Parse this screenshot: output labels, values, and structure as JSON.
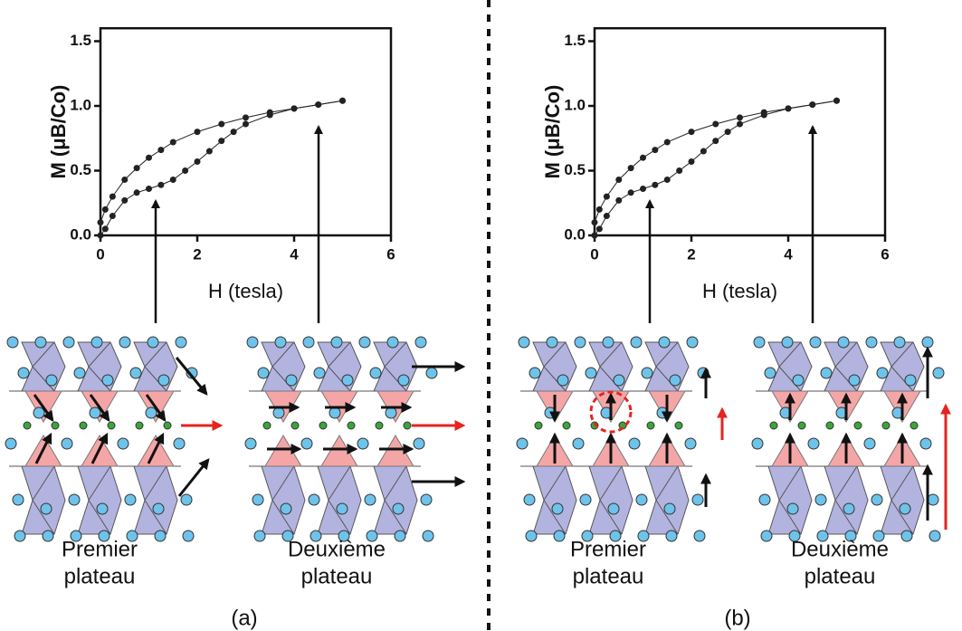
{
  "chart_data": [
    {
      "type": "line",
      "x_label": "H (tesla)",
      "y_label": "M (μB/Co)",
      "xlim": [
        0,
        6
      ],
      "xticks": [
        0,
        2,
        4,
        6
      ],
      "ylim": [
        0,
        1.6
      ],
      "yticks": [
        {
          "value": 0,
          "label": "0.0"
        },
        {
          "value": 0.5,
          "label": "0.5"
        },
        {
          "value": 1,
          "label": "1.0"
        },
        {
          "value": 1.5,
          "label": "1.5"
        }
      ],
      "series": [
        {
          "color": "#222222",
          "x": [
            0,
            0.1,
            0.25,
            0.5,
            0.75,
            1,
            1.25,
            1.5,
            2,
            2.5,
            3,
            3.5,
            4,
            4.5,
            5
          ],
          "values": [
            0.1,
            0.2,
            0.3,
            0.43,
            0.52,
            0.6,
            0.66,
            0.72,
            0.8,
            0.86,
            0.91,
            0.95,
            0.98,
            1.01,
            1.04
          ]
        },
        {
          "color": "#222222",
          "x": [
            0,
            0.1,
            0.25,
            0.5,
            0.75,
            1,
            1.25,
            1.5,
            1.75,
            2,
            2.25,
            2.5,
            2.75,
            3,
            3.5,
            4,
            4.5,
            5
          ],
          "values": [
            0,
            0.05,
            0.15,
            0.27,
            0.33,
            0.36,
            0.39,
            0.43,
            0.5,
            0.57,
            0.65,
            0.73,
            0.8,
            0.86,
            0.93,
            0.98,
            1.01,
            1.04
          ]
        }
      ]
    },
    {
      "type": "line",
      "x_label": "H (tesla)",
      "y_label": "M (μB/Co)",
      "xlim": [
        0,
        6
      ],
      "xticks": [
        0,
        2,
        4,
        6
      ],
      "ylim": [
        0,
        1.6
      ],
      "yticks": [
        {
          "value": 0,
          "label": "0.0"
        },
        {
          "value": 0.5,
          "label": "0.5"
        },
        {
          "value": 1,
          "label": "1.0"
        },
        {
          "value": 1.5,
          "label": "1.5"
        }
      ],
      "series": [
        {
          "color": "#222222",
          "x": [
            0,
            0.1,
            0.25,
            0.5,
            0.75,
            1,
            1.25,
            1.5,
            2,
            2.5,
            3,
            3.5,
            4,
            4.5,
            5
          ],
          "values": [
            0.1,
            0.2,
            0.3,
            0.43,
            0.52,
            0.6,
            0.66,
            0.72,
            0.8,
            0.86,
            0.91,
            0.95,
            0.98,
            1.01,
            1.04
          ]
        },
        {
          "color": "#222222",
          "x": [
            0,
            0.1,
            0.25,
            0.5,
            0.75,
            1,
            1.25,
            1.5,
            1.75,
            2,
            2.25,
            2.5,
            2.75,
            3,
            3.5,
            4,
            4.5,
            5
          ],
          "values": [
            0,
            0.05,
            0.15,
            0.27,
            0.33,
            0.36,
            0.39,
            0.43,
            0.5,
            0.57,
            0.65,
            0.73,
            0.8,
            0.86,
            0.93,
            0.98,
            1.01,
            1.04
          ]
        }
      ]
    }
  ],
  "panels": [
    {
      "caption": "(a)",
      "structures": [
        [
          "Premier",
          "plateau"
        ],
        [
          "Deuxième",
          "plateau"
        ]
      ]
    },
    {
      "caption": "(b)",
      "structures": [
        [
          "Premier",
          "plateau"
        ],
        [
          "Deuxième",
          "plateau"
        ]
      ]
    }
  ]
}
